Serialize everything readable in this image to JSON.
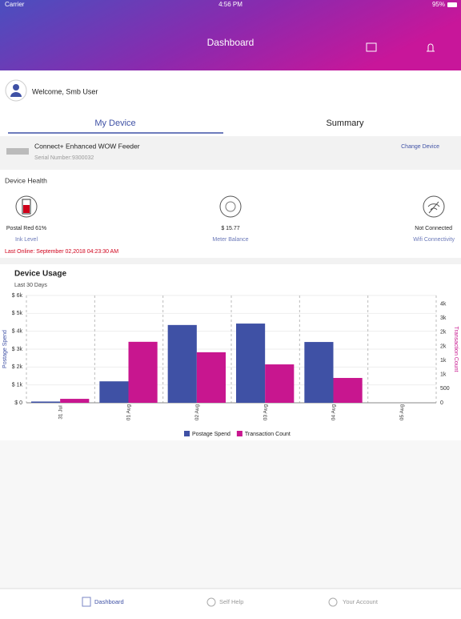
{
  "status_bar": {
    "carrier": "Carrier",
    "time": "4:56 PM",
    "battery": "95%"
  },
  "header": {
    "title": "Dashboard"
  },
  "welcome": "Welcome, Smb User",
  "tabs": [
    "My Device",
    "Summary"
  ],
  "device": {
    "name": "Connect+ Enhanced WOW Feeder",
    "serial_label": "Serial Number:",
    "serial": "9300032",
    "action": "Change Device"
  },
  "health": {
    "title": "Device Health",
    "items": [
      {
        "value": "Postal Red 61%",
        "label": "Ink Level"
      },
      {
        "value": "$ 15.77",
        "label": "Meter Balance"
      },
      {
        "value": "Not Connected",
        "label": "Wifi Connectivity"
      }
    ],
    "last_online": "Last Online: September 02,2018 04:23:30 AM"
  },
  "usage": {
    "title": "Device Usage",
    "subtitle": "Last 30 Days",
    "chart_data": {
      "type": "bar",
      "categories": [
        "31 Jul",
        "01 Aug",
        "02 Aug",
        "03 Aug",
        "04 Aug",
        "05 Aug"
      ],
      "series": [
        {
          "name": "Postage Spend",
          "color": "#3f51a5",
          "values": [
            70,
            1200,
            4350,
            4430,
            3400,
            0
          ]
        },
        {
          "name": "Transaction Count",
          "color": "#c8168f",
          "axis": "y2",
          "values": [
            140,
            2160,
            1790,
            1360,
            880,
            0
          ]
        }
      ],
      "ylabel": "Postage Spend",
      "y2label": "Transaction Count",
      "ylim": [
        0,
        6000
      ],
      "yticks": [
        {
          "value": 0,
          "label": "$ 0"
        },
        {
          "value": 1000,
          "label": "$ 1k"
        },
        {
          "value": 2000,
          "label": "$ 2k"
        },
        {
          "value": 3000,
          "label": "$ 3k"
        },
        {
          "value": 4000,
          "label": "$ 4k"
        },
        {
          "value": 5000,
          "label": "$ 5k"
        },
        {
          "value": 6000,
          "label": "$ 6k"
        }
      ],
      "y2lim": [
        0,
        3800
      ],
      "y2ticks": [
        0,
        500,
        {
          "value": 1000,
          "label": "1k"
        },
        {
          "value": 1500,
          "label": "1k"
        },
        {
          "value": 2000,
          "label": "2k"
        },
        {
          "value": 2500,
          "label": "2k"
        },
        {
          "value": 3000,
          "label": "3k"
        },
        {
          "value": 3500,
          "label": "4k"
        }
      ],
      "grid": true,
      "legend": "bottom"
    }
  },
  "nav": [
    "Dashboard",
    "Self Help",
    "Your Account"
  ]
}
